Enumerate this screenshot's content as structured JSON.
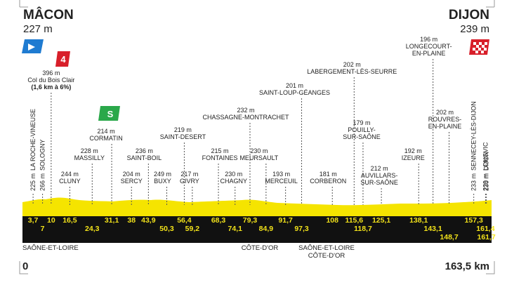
{
  "start": {
    "name": "MÂCON",
    "altitude": "227 m"
  },
  "finish": {
    "name": "DIJON",
    "altitude": "239 m"
  },
  "climb_category": "4",
  "sprint_icon": "S",
  "waypoints": [
    {
      "altitude": "225 m",
      "name": [
        "LA ROCHE-VINEUSE"
      ],
      "km": "3,7"
    },
    {
      "altitude": "266 m",
      "name": [
        "SOLOGNY"
      ],
      "km": "7"
    },
    {
      "altitude": "396 m",
      "name": [
        "Col du Bois Clair"
      ],
      "detail": "(1,6 km à 6%)",
      "km": "10"
    },
    {
      "altitude": "244 m",
      "name": [
        "CLUNY"
      ],
      "km": "16,5"
    },
    {
      "altitude": "228 m",
      "name": [
        "MASSILLY"
      ],
      "km": "24,3"
    },
    {
      "altitude": "214 m",
      "name": [
        "CORMATIN"
      ],
      "km": "31,1"
    },
    {
      "altitude": "204 m",
      "name": [
        "SERCY"
      ],
      "km": "38"
    },
    {
      "altitude": "236 m",
      "name": [
        "SAINT-BOIL"
      ],
      "km": "43,9"
    },
    {
      "altitude": "249 m",
      "name": [
        "BUXY"
      ],
      "km": "50,3"
    },
    {
      "altitude": "219 m",
      "name": [
        "SAINT-DESERT"
      ],
      "km": "56,4"
    },
    {
      "altitude": "217 m",
      "name": [
        "GIVRY"
      ],
      "km": "59,2"
    },
    {
      "altitude": "215 m",
      "name": [
        "FONTAINES"
      ],
      "km": "68,3"
    },
    {
      "altitude": "230 m",
      "name": [
        "CHAGNY"
      ],
      "km": "74,1"
    },
    {
      "altitude": "232 m",
      "name": [
        "CHASSAGNE-MONTRACHET"
      ],
      "km": "79,3"
    },
    {
      "altitude": "230 m",
      "name": [
        "MEURSAULT"
      ],
      "km": "84,9"
    },
    {
      "altitude": "193 m",
      "name": [
        "MERCEUIL"
      ],
      "km": "91,7"
    },
    {
      "altitude": "201 m",
      "name": [
        "SAINT-LOUP-GÉANGES"
      ],
      "km": "97,3"
    },
    {
      "altitude": "181 m",
      "name": [
        "CORBERON"
      ],
      "km": "108"
    },
    {
      "altitude": "202 m",
      "name": [
        "LABERGEMENT-LÈS-SEURRE"
      ],
      "km": "115,6"
    },
    {
      "altitude": "179 m",
      "name": [
        "POUILLY-",
        "SUR-SAÔNE"
      ],
      "km": "118,7"
    },
    {
      "altitude": "212 m",
      "name": [
        "AUVILLARS-",
        "SUR-SAÔNE"
      ],
      "km": "125,1"
    },
    {
      "altitude": "192 m",
      "name": [
        "IZEURE"
      ],
      "km": "138,1"
    },
    {
      "altitude": "196 m",
      "name": [
        "LONGECOURT-",
        "EN-PLAINE"
      ],
      "km": "143,1"
    },
    {
      "altitude": "202 m",
      "name": [
        "ROUVRES-",
        "EN-PLAINE"
      ],
      "km": "148,7"
    },
    {
      "altitude": "233 m",
      "name": [
        "SENNECEY-LÈS-DIJON"
      ],
      "km": "157,3"
    },
    {
      "altitude": "229 m",
      "name": [
        "LONGVIC"
      ],
      "km": "161,4"
    },
    {
      "altitude": "230 m",
      "name": [
        "DIJON"
      ],
      "km": "161,7"
    }
  ],
  "regions": [
    [
      "SAÔNE-ET-LOIRE"
    ],
    [
      "CÔTE-D'OR"
    ],
    [
      "SAÔNE-ET-LOIRE",
      "CÔTE-D'OR"
    ]
  ],
  "axis": {
    "start": "0",
    "end": "163,5 km"
  }
}
